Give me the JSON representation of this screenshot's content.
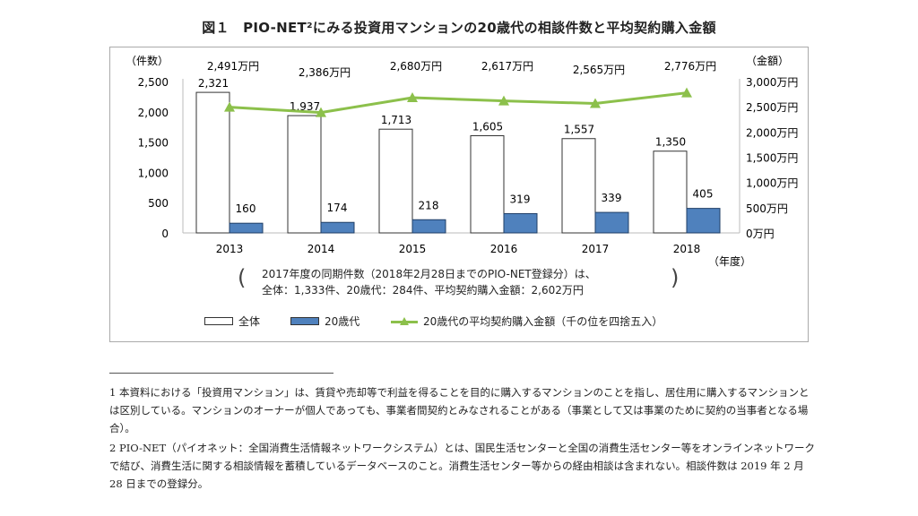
{
  "title": "図１　PIO-NET²にみる投資用マンションの20歳代の相談件数と平均契約購入金額",
  "chart_data": {
    "type": "bar",
    "categories": [
      "2013",
      "2014",
      "2015",
      "2016",
      "2017",
      "2018"
    ],
    "series": [
      {
        "name": "全体",
        "type": "bar",
        "axis": "left",
        "values": [
          2321,
          1937,
          1713,
          1605,
          1557,
          1350
        ],
        "labels": [
          "2,321",
          "1,937",
          "1,713",
          "1,605",
          "1,557",
          "1,350"
        ],
        "color": "#ffffff"
      },
      {
        "name": "20歳代",
        "type": "bar",
        "axis": "left",
        "values": [
          160,
          174,
          218,
          319,
          339,
          405
        ],
        "labels": [
          "160",
          "174",
          "218",
          "319",
          "339",
          "405"
        ],
        "color": "#4f81bd"
      },
      {
        "name": "20歳代の平均契約購入金額（千の位を四捨五入）",
        "type": "line",
        "axis": "right",
        "values": [
          2491,
          2386,
          2680,
          2617,
          2565,
          2776
        ],
        "labels": [
          "2,491万円",
          "2,386万円",
          "2,680万円",
          "2,617万円",
          "2,565万円",
          "2,776万円"
        ],
        "color": "#8cc04b"
      }
    ],
    "left_axis": {
      "label": "（件数）",
      "range": [
        0,
        2500
      ],
      "ticks": [
        "0",
        "500",
        "1,000",
        "1,500",
        "2,000",
        "2,500"
      ]
    },
    "right_axis": {
      "label": "（金額）",
      "range": [
        0,
        3000
      ],
      "ticks": [
        "0万円",
        "500万円",
        "1,000万円",
        "1,500万円",
        "2,000万円",
        "2,500万円",
        "3,000万円"
      ]
    },
    "xlabel": "（年度）",
    "legend": "bottom"
  },
  "note": {
    "line1": "2017年度の同期件数（2018年2月28日までのPIO-NET登録分）は、",
    "line2": "全体：1,333件、20歳代：284件、平均契約購入金額：2,602万円"
  },
  "footnotes": [
    "1 本資料における「投資用マンション」は、賃貸や売却等で利益を得ることを目的に購入するマンションのことを指し、居住用に購入するマンションとは区別している。マンションのオーナーが個人であっても、事業者間契約とみなされることがある（事業として又は事業のために契約の当事者となる場合）。",
    "2 PIO-NET（パイオネット：全国消費生活情報ネットワークシステム）とは、国民生活センターと全国の消費生活センター等をオンラインネットワークで結び、消費生活に関する相談情報を蓄積しているデータベースのこと。消費生活センター等からの経由相談は含まれない。相談件数は 2019 年 2 月 28 日までの登録分。"
  ]
}
